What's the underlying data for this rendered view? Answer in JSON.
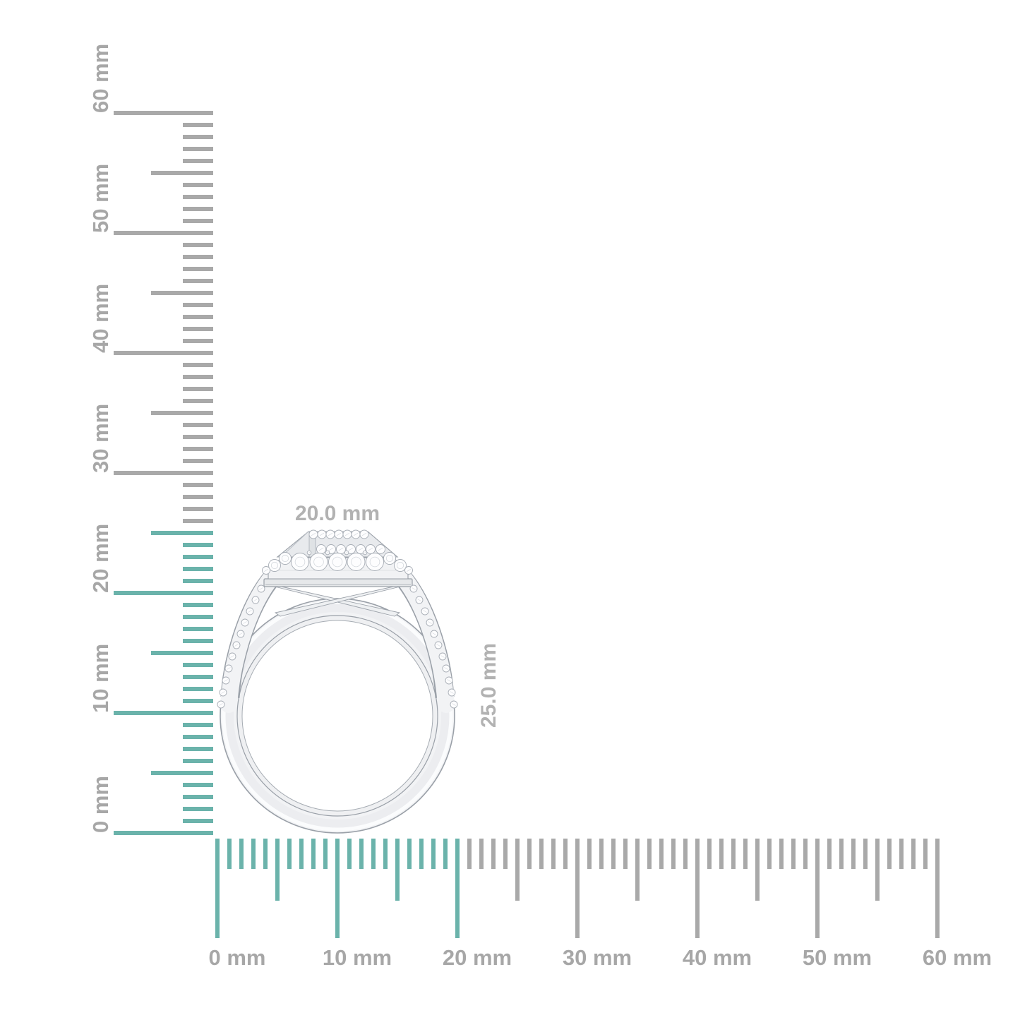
{
  "rulers": {
    "highlight_color": "#6bb3ab",
    "default_tick_color": "#a9a9a9",
    "label_color": "#a7a7a7",
    "vertical": {
      "min_mm": 0,
      "max_mm": 60,
      "minor_step_mm": 1,
      "medium_step_mm": 5,
      "major_step_mm": 10,
      "highlighted_up_to_mm": 25,
      "major_labels": [
        "0 mm",
        "10 mm",
        "20 mm",
        "30 mm",
        "40 mm",
        "50 mm",
        "60 mm"
      ]
    },
    "horizontal": {
      "min_mm": 0,
      "max_mm": 60,
      "minor_step_mm": 1,
      "medium_step_mm": 5,
      "major_step_mm": 10,
      "highlighted_up_to_mm": 20,
      "major_labels": [
        "0 mm",
        "10 mm",
        "20 mm",
        "30 mm",
        "40 mm",
        "50 mm",
        "60 mm"
      ]
    }
  },
  "product": {
    "description": "halo diamond ring, side profile view",
    "width_label": "20.0 mm",
    "height_label": "25.0 mm",
    "dimension_label_color": "#b2b2b2",
    "metal_body_color": "#f2f3f5",
    "metal_outline_color": "#9aa0a8"
  }
}
